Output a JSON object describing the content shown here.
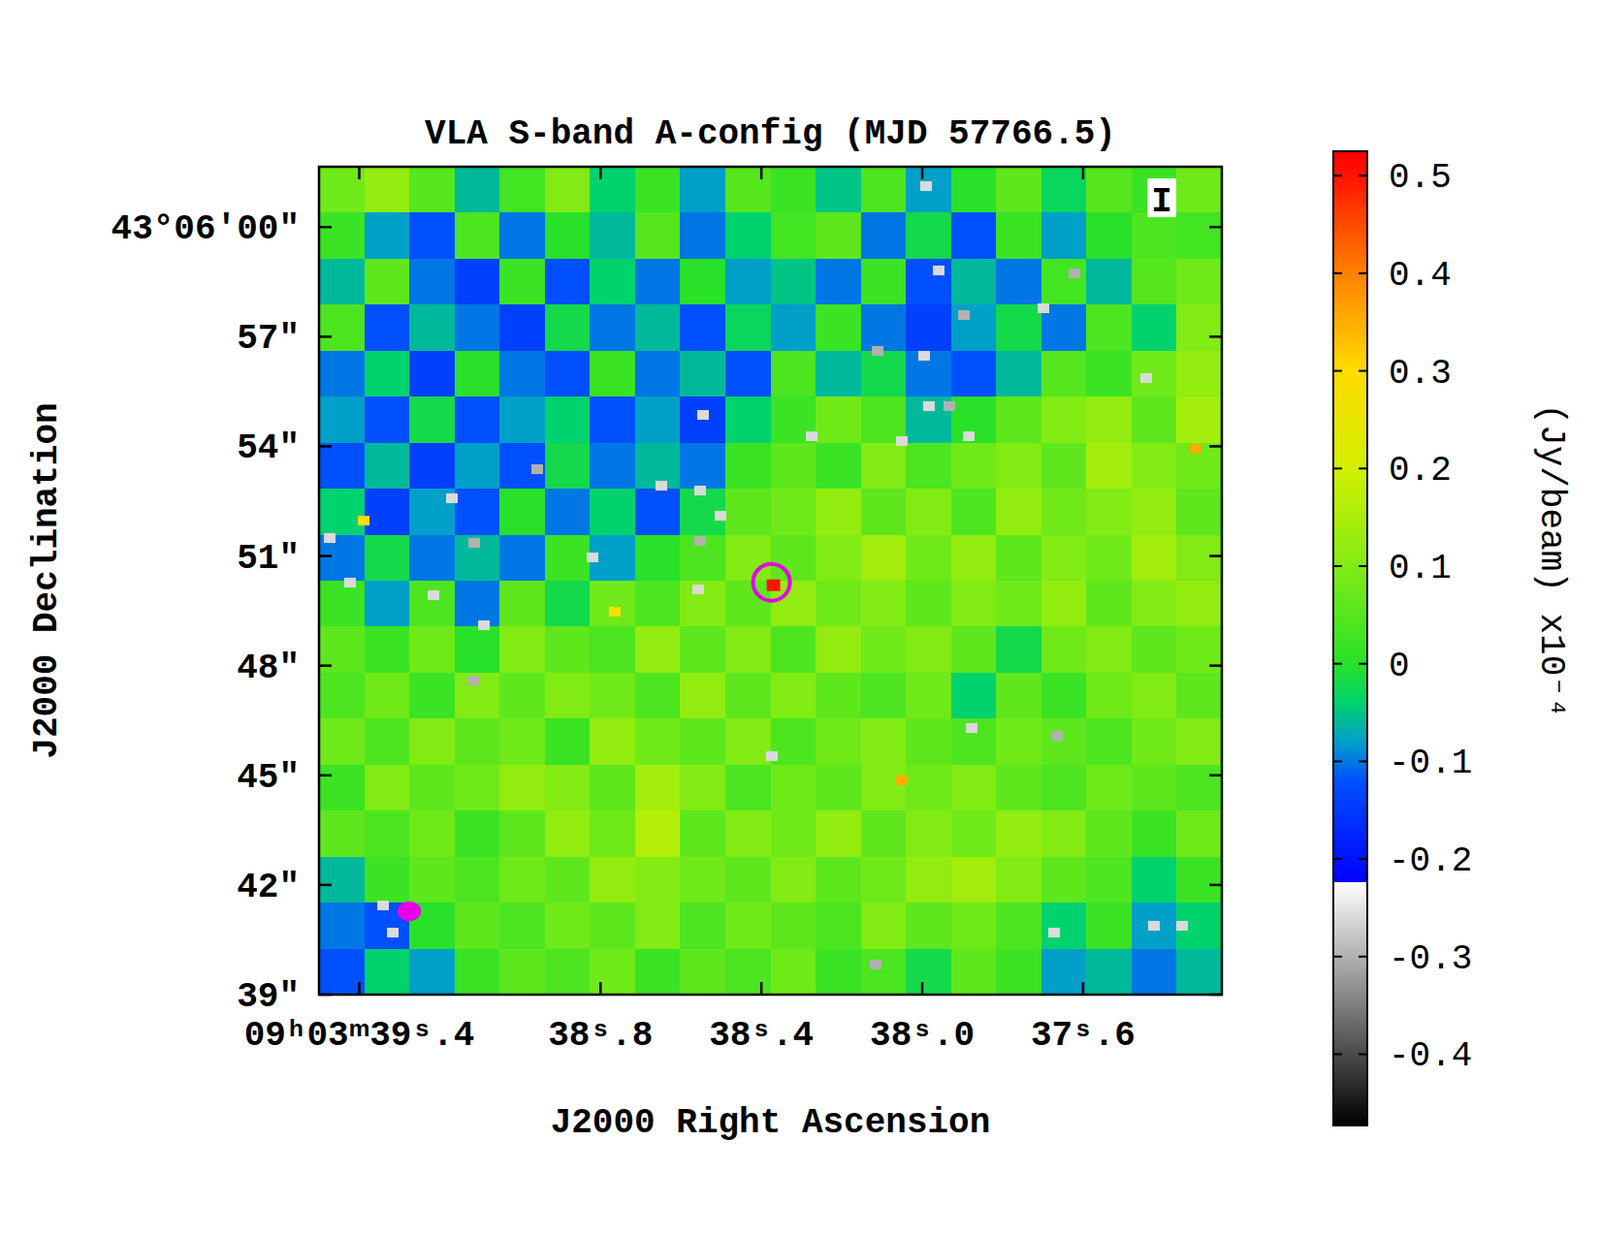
{
  "chart_data": {
    "type": "heatmap",
    "title": "VLA S-band A-config (MJD 57766.5)",
    "x_label": "J2000 Right Ascension",
    "y_label": "J2000 Declination",
    "stokes": "I",
    "xlim": [
      39.5,
      37.255
    ],
    "xticks": [
      {
        "value": 39.4,
        "label": "09ʰ03ᵐ39ˢ.4"
      },
      {
        "value": 38.8,
        "label": "38ˢ.8"
      },
      {
        "value": 38.4,
        "label": "38ˢ.4"
      },
      {
        "value": 38.0,
        "label": "38ˢ.0"
      },
      {
        "value": 37.6,
        "label": "37ˢ.6"
      }
    ],
    "ylim": [
      39,
      61.65
    ],
    "yticks": [
      {
        "value": 60,
        "label": "43°06′00″"
      },
      {
        "value": 57,
        "label": "57″"
      },
      {
        "value": 54,
        "label": "54″"
      },
      {
        "value": 51,
        "label": "51″"
      },
      {
        "value": 48,
        "label": "48″"
      },
      {
        "value": 45,
        "label": "45″"
      },
      {
        "value": 42,
        "label": "42″"
      },
      {
        "value": 39,
        "label": "39″"
      }
    ],
    "cells": [
      [
        0.08,
        0.12,
        0.05,
        -0.06,
        0.03,
        0.1,
        -0.04,
        0.02,
        -0.08,
        0.05,
        0.02,
        -0.05,
        0.04,
        -0.08,
        0.0,
        0.06,
        -0.03,
        0.05,
        0.02,
        0.08
      ],
      [
        0.02,
        -0.08,
        -0.12,
        0.04,
        -0.1,
        0.0,
        -0.06,
        0.05,
        -0.1,
        -0.04,
        0.03,
        0.06,
        -0.1,
        -0.02,
        -0.12,
        0.02,
        -0.08,
        0.0,
        0.04,
        0.03
      ],
      [
        -0.06,
        0.06,
        -0.1,
        -0.14,
        0.02,
        -0.12,
        -0.04,
        -0.1,
        0.0,
        -0.08,
        -0.05,
        -0.1,
        0.02,
        -0.12,
        -0.06,
        -0.1,
        0.03,
        -0.06,
        0.05,
        0.08
      ],
      [
        0.04,
        -0.12,
        -0.06,
        -0.1,
        -0.14,
        -0.02,
        -0.1,
        -0.06,
        -0.12,
        -0.03,
        -0.08,
        0.02,
        -0.1,
        -0.14,
        -0.08,
        -0.02,
        -0.1,
        0.04,
        -0.04,
        0.1
      ],
      [
        -0.1,
        -0.04,
        -0.14,
        0.0,
        -0.1,
        -0.12,
        0.02,
        -0.1,
        -0.06,
        -0.12,
        0.04,
        -0.06,
        -0.02,
        -0.1,
        -0.12,
        -0.06,
        0.05,
        0.02,
        0.08,
        0.12
      ],
      [
        -0.08,
        -0.12,
        -0.02,
        -0.12,
        -0.08,
        -0.04,
        -0.12,
        -0.08,
        -0.14,
        -0.04,
        0.02,
        0.08,
        0.04,
        -0.06,
        0.0,
        0.06,
        0.1,
        0.12,
        0.06,
        0.14
      ],
      [
        -0.12,
        -0.06,
        -0.14,
        -0.08,
        -0.12,
        -0.02,
        -0.1,
        -0.06,
        -0.1,
        0.02,
        0.06,
        0.02,
        0.1,
        0.04,
        0.08,
        0.1,
        0.06,
        0.14,
        0.1,
        0.08
      ],
      [
        -0.04,
        -0.14,
        -0.08,
        -0.12,
        0.0,
        -0.1,
        -0.04,
        -0.12,
        -0.02,
        0.06,
        0.08,
        0.12,
        0.06,
        0.1,
        0.04,
        0.12,
        0.08,
        0.1,
        0.12,
        0.06
      ],
      [
        -0.1,
        -0.02,
        -0.1,
        -0.06,
        -0.1,
        0.02,
        -0.08,
        0.0,
        0.04,
        0.1,
        0.06,
        0.1,
        0.14,
        0.08,
        0.12,
        0.06,
        0.1,
        0.08,
        0.14,
        0.1
      ],
      [
        0.02,
        -0.08,
        0.04,
        -0.1,
        0.06,
        -0.02,
        0.08,
        0.04,
        0.1,
        0.06,
        0.12,
        0.08,
        0.1,
        0.06,
        0.1,
        0.08,
        0.12,
        0.06,
        0.1,
        0.12
      ],
      [
        0.06,
        0.02,
        0.08,
        0.0,
        0.1,
        0.06,
        0.04,
        0.12,
        0.06,
        0.1,
        0.04,
        0.12,
        0.08,
        0.1,
        0.06,
        -0.02,
        0.08,
        0.1,
        0.06,
        0.08
      ],
      [
        0.04,
        0.08,
        0.02,
        0.1,
        0.06,
        0.1,
        0.08,
        0.04,
        0.12,
        0.06,
        0.1,
        0.06,
        0.04,
        0.08,
        -0.04,
        0.06,
        0.02,
        0.08,
        0.1,
        0.06
      ],
      [
        0.08,
        0.04,
        0.1,
        0.06,
        0.08,
        0.02,
        0.12,
        0.08,
        0.06,
        0.1,
        0.04,
        0.08,
        0.1,
        0.06,
        0.04,
        0.08,
        0.06,
        0.04,
        0.08,
        0.1
      ],
      [
        0.02,
        0.1,
        0.06,
        0.08,
        0.12,
        0.1,
        0.06,
        0.14,
        0.1,
        0.04,
        0.08,
        0.06,
        0.1,
        0.08,
        0.1,
        0.06,
        0.04,
        0.08,
        0.06,
        0.04
      ],
      [
        0.06,
        0.04,
        0.08,
        0.02,
        0.06,
        0.12,
        0.08,
        0.16,
        0.06,
        0.1,
        0.08,
        0.12,
        0.06,
        0.1,
        0.08,
        0.12,
        0.1,
        0.06,
        0.02,
        0.08
      ],
      [
        -0.06,
        0.02,
        0.06,
        0.04,
        0.08,
        0.06,
        0.12,
        0.1,
        0.08,
        0.06,
        0.1,
        0.06,
        0.08,
        0.12,
        0.14,
        0.1,
        0.06,
        0.04,
        -0.04,
        0.02
      ],
      [
        -0.1,
        -0.12,
        0.0,
        0.06,
        0.04,
        0.08,
        0.06,
        0.1,
        0.04,
        0.08,
        0.06,
        0.04,
        0.1,
        0.06,
        0.08,
        0.04,
        -0.04,
        0.02,
        -0.08,
        -0.04
      ],
      [
        -0.12,
        -0.04,
        -0.08,
        0.02,
        0.06,
        0.04,
        0.08,
        0.02,
        0.06,
        0.04,
        0.08,
        0.02,
        0.04,
        -0.02,
        0.06,
        0.02,
        -0.08,
        -0.06,
        -0.1,
        -0.06
      ]
    ],
    "spots": [
      {
        "ra": 37.991,
        "dec": 61.11,
        "value": -0.26
      },
      {
        "ra": 37.958,
        "dec": 58.8,
        "value": -0.26
      },
      {
        "ra": 37.621,
        "dec": 58.72,
        "value": -0.3
      },
      {
        "ra": 37.897,
        "dec": 57.6,
        "value": -0.3
      },
      {
        "ra": 37.699,
        "dec": 57.77,
        "value": -0.26
      },
      {
        "ra": 38.111,
        "dec": 56.6,
        "value": -0.3
      },
      {
        "ra": 37.996,
        "dec": 56.49,
        "value": -0.26
      },
      {
        "ra": 37.443,
        "dec": 55.88,
        "value": -0.26
      },
      {
        "ra": 38.545,
        "dec": 54.87,
        "value": -0.26
      },
      {
        "ra": 38.276,
        "dec": 54.29,
        "value": -0.26
      },
      {
        "ra": 38.05,
        "dec": 54.15,
        "value": -0.26
      },
      {
        "ra": 37.984,
        "dec": 55.1,
        "value": -0.26
      },
      {
        "ra": 37.933,
        "dec": 55.1,
        "value": -0.3
      },
      {
        "ra": 37.885,
        "dec": 54.29,
        "value": -0.26
      },
      {
        "ra": 38.958,
        "dec": 53.37,
        "value": -0.3
      },
      {
        "ra": 39.169,
        "dec": 52.59,
        "value": -0.26
      },
      {
        "ra": 38.649,
        "dec": 52.92,
        "value": -0.26
      },
      {
        "ra": 38.552,
        "dec": 52.79,
        "value": -0.26
      },
      {
        "ra": 38.502,
        "dec": 52.09,
        "value": -0.26
      },
      {
        "ra": 39.474,
        "dec": 51.5,
        "value": -0.26
      },
      {
        "ra": 39.113,
        "dec": 51.36,
        "value": -0.3
      },
      {
        "ra": 38.552,
        "dec": 51.42,
        "value": -0.3
      },
      {
        "ra": 38.819,
        "dec": 50.97,
        "value": -0.26
      },
      {
        "ra": 39.423,
        "dec": 50.28,
        "value": -0.26
      },
      {
        "ra": 38.557,
        "dec": 50.08,
        "value": -0.26
      },
      {
        "ra": 39.215,
        "dec": 49.92,
        "value": -0.26
      },
      {
        "ra": 39.09,
        "dec": 49.11,
        "value": -0.26
      },
      {
        "ra": 39.116,
        "dec": 47.6,
        "value": -0.3
      },
      {
        "ra": 38.375,
        "dec": 45.52,
        "value": -0.26
      },
      {
        "ra": 37.877,
        "dec": 46.3,
        "value": -0.26
      },
      {
        "ra": 37.664,
        "dec": 46.07,
        "value": -0.3
      },
      {
        "ra": 39.342,
        "dec": 41.45,
        "value": -0.26
      },
      {
        "ra": 39.316,
        "dec": 40.7,
        "value": -0.26
      },
      {
        "ra": 37.672,
        "dec": 40.7,
        "value": -0.26
      },
      {
        "ra": 37.425,
        "dec": 40.89,
        "value": -0.26
      },
      {
        "ra": 37.354,
        "dec": 40.89,
        "value": -0.26
      },
      {
        "ra": 38.116,
        "dec": 39.83,
        "value": -0.3
      },
      {
        "ra": 37.319,
        "dec": 53.93,
        "value": 0.35
      },
      {
        "ra": 38.05,
        "dec": 44.87,
        "value": 0.35
      },
      {
        "ra": 38.765,
        "dec": 49.47,
        "value": 0.28
      },
      {
        "ra": 39.39,
        "dec": 51.98,
        "value": 0.3
      }
    ],
    "source": {
      "ra": 38.37,
      "dec": 50.2,
      "value": 0.5
    },
    "beam": {
      "ra": 39.276,
      "dec": 41.28,
      "width_s": 0.059,
      "height_arcsec": 0.55
    },
    "colorbar": {
      "label": "(Jy/beam)  x10⁻⁴",
      "range": [
        -0.473,
        0.525
      ],
      "ticks": [
        0.5,
        0.4,
        0.3,
        0.2,
        0.1,
        0,
        -0.1,
        -0.2,
        -0.3,
        -0.4
      ]
    }
  }
}
